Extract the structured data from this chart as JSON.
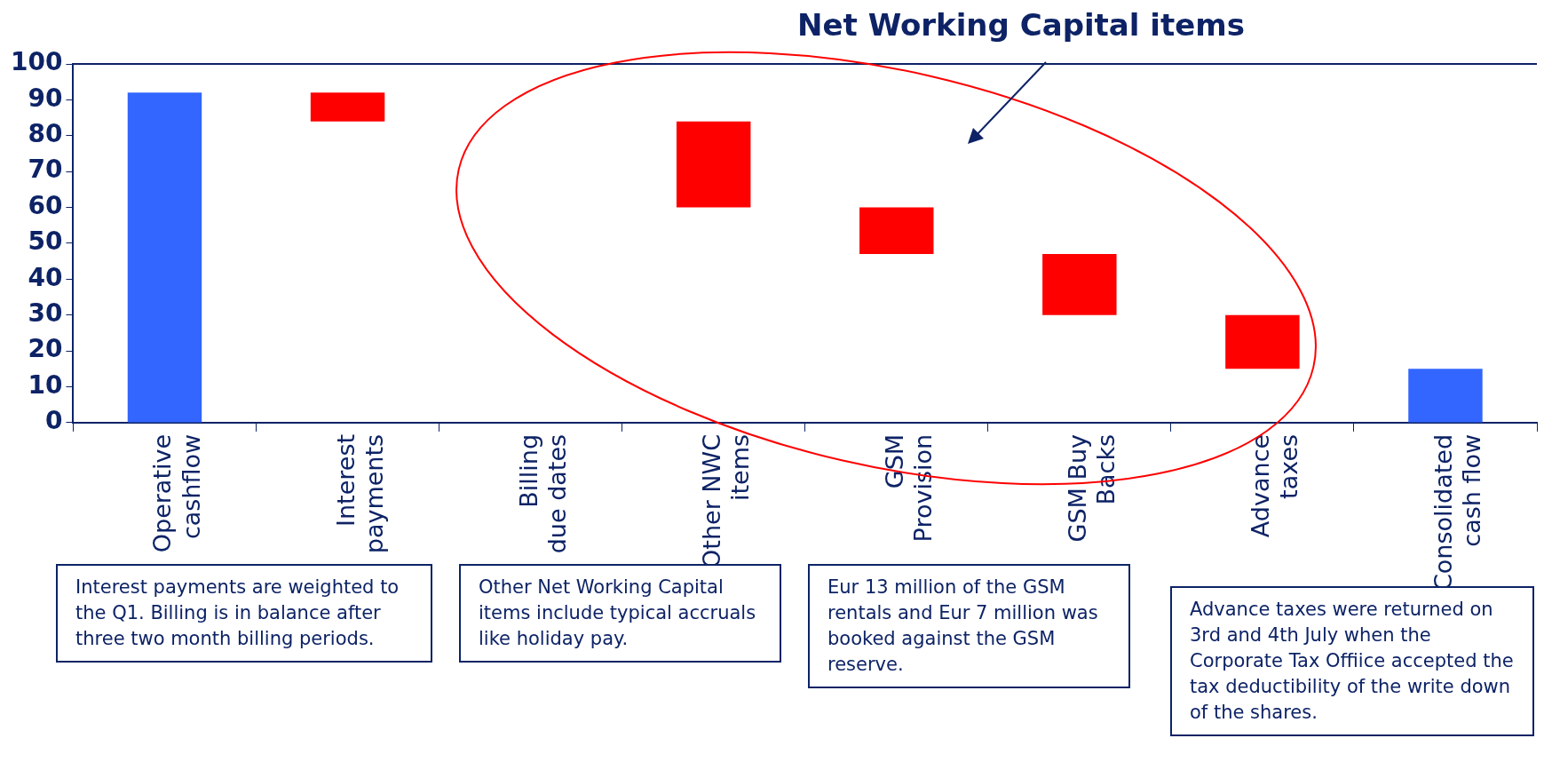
{
  "chart_data": {
    "type": "bar",
    "title": "Net Working Capital items",
    "categories": [
      "Operative cashflow",
      "Interest payments",
      "Billing due dates",
      "Other NWC items",
      "GSM Provision",
      "GSM Buy Backs",
      "Advance taxes",
      "Consolidated cash flow"
    ],
    "values": [
      92,
      8,
      null,
      24,
      13,
      17,
      15,
      15
    ],
    "base": [
      0,
      84,
      null,
      60,
      47,
      30,
      15,
      0
    ],
    "colors": [
      "#3366ff",
      "#ff0000",
      null,
      "#ff0000",
      "#ff0000",
      "#ff0000",
      "#ff0000",
      "#3366ff"
    ],
    "ylim": [
      0,
      100
    ],
    "yticks": [
      0,
      10,
      20,
      30,
      40,
      50,
      60,
      70,
      80,
      90,
      100
    ],
    "grid": false,
    "legend": false,
    "annotations": [
      "Interest payments are weighted to the Q1. Billing is in balance after three two month billing periods.",
      "Other Net Working Capital items include typical accruals like holiday pay.",
      "Eur 13 million of the GSM rentals and Eur 7 million was booked against the GSM reserve.",
      "Advance taxes were returned on 3rd and 4th July when the Corporate Tax Offiice accepted the tax deductibility of the write down of the shares."
    ]
  }
}
